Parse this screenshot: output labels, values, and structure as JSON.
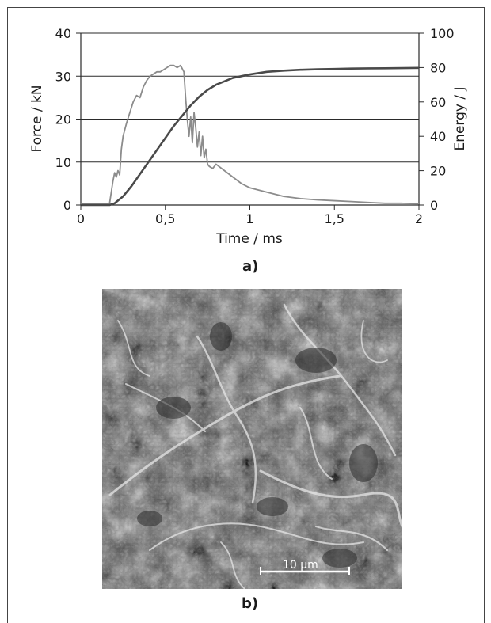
{
  "figure": {
    "panel_a_label": "a)",
    "panel_b_label": "b)",
    "scale_bar_label": "10 μm"
  },
  "chart_data": {
    "type": "line",
    "title": "",
    "xlabel": "Time / ms",
    "ylabel_left": "Force / kN",
    "ylabel_right": "Energy / J",
    "xlim": [
      0,
      2
    ],
    "ylim_left": [
      0,
      40
    ],
    "ylim_right": [
      0,
      100
    ],
    "x_ticks": [
      "0",
      "0,5",
      "1",
      "1,5",
      "2"
    ],
    "y_left_ticks": [
      "0",
      "10",
      "20",
      "30",
      "40"
    ],
    "y_right_ticks": [
      "0",
      "20",
      "40",
      "60",
      "80",
      "100"
    ],
    "grid": "horizontal",
    "legend": "none",
    "series": [
      {
        "axis": "left",
        "color": "#8c8c8c",
        "x": [
          0,
          0.17,
          0.19,
          0.2,
          0.21,
          0.22,
          0.23,
          0.24,
          0.25,
          0.27,
          0.29,
          0.31,
          0.33,
          0.35,
          0.37,
          0.39,
          0.41,
          0.43,
          0.45,
          0.47,
          0.49,
          0.51,
          0.53,
          0.55,
          0.57,
          0.59,
          0.61,
          0.62,
          0.63,
          0.64,
          0.65,
          0.66,
          0.67,
          0.68,
          0.69,
          0.7,
          0.71,
          0.72,
          0.73,
          0.74,
          0.75,
          0.76,
          0.78,
          0.8,
          0.85,
          0.9,
          0.95,
          1.0,
          1.1,
          1.2,
          1.3,
          1.4,
          1.5,
          1.6,
          1.7,
          1.8,
          1.9,
          2.0
        ],
        "y": [
          0.2,
          0.3,
          5.5,
          7.5,
          6.5,
          8.0,
          7.0,
          13.0,
          16.0,
          19.0,
          21.5,
          24.0,
          25.5,
          25.0,
          27.5,
          29.0,
          30.0,
          30.5,
          31.0,
          31.0,
          31.5,
          32.0,
          32.5,
          32.5,
          32.0,
          32.5,
          31.0,
          25.0,
          20.0,
          16.0,
          20.5,
          14.5,
          21.5,
          18.0,
          13.5,
          17.0,
          11.5,
          16.0,
          11.0,
          13.0,
          9.5,
          9.0,
          8.5,
          9.5,
          8.0,
          6.5,
          5.0,
          4.0,
          3.0,
          2.0,
          1.5,
          1.2,
          1.0,
          0.8,
          0.6,
          0.4,
          0.4,
          0.3
        ]
      },
      {
        "axis": "right",
        "color": "#4a4a4a",
        "x": [
          0,
          0.17,
          0.2,
          0.25,
          0.3,
          0.35,
          0.4,
          0.45,
          0.5,
          0.55,
          0.6,
          0.65,
          0.7,
          0.75,
          0.8,
          0.9,
          1.0,
          1.1,
          1.2,
          1.3,
          1.4,
          1.5,
          1.6,
          1.7,
          1.8,
          1.9,
          2.0
        ],
        "y": [
          0,
          0,
          1,
          5,
          11,
          18,
          25,
          32,
          39,
          46,
          52,
          58,
          63,
          67,
          70,
          74,
          76,
          77.5,
          78.2,
          78.7,
          79,
          79.2,
          79.4,
          79.5,
          79.6,
          79.7,
          79.8
        ]
      }
    ]
  }
}
